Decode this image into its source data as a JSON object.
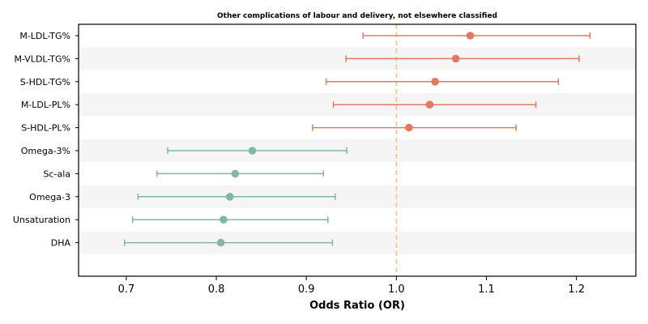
{
  "chart_data": {
    "type": "forest",
    "title": "Other complications of labour and delivery, not elsewhere classified",
    "xlabel": "Odds Ratio (OR)",
    "ylabel": "",
    "xlim": [
      0.647,
      1.266
    ],
    "xticks": [
      0.7,
      0.8,
      0.9,
      1.0,
      1.1,
      1.2
    ],
    "reference_line": 1.0,
    "rows": [
      {
        "label": "M-LDL-TG%",
        "or": 1.082,
        "ci_low": 0.963,
        "ci_high": 1.215,
        "group": "positive"
      },
      {
        "label": "M-VLDL-TG%",
        "or": 1.066,
        "ci_low": 0.944,
        "ci_high": 1.203,
        "group": "positive"
      },
      {
        "label": "S-HDL-TG%",
        "or": 1.043,
        "ci_low": 0.922,
        "ci_high": 1.18,
        "group": "positive"
      },
      {
        "label": "M-LDL-PL%",
        "or": 1.037,
        "ci_low": 0.93,
        "ci_high": 1.155,
        "group": "positive"
      },
      {
        "label": "S-HDL-PL%",
        "or": 1.014,
        "ci_low": 0.907,
        "ci_high": 1.133,
        "group": "positive"
      },
      {
        "label": "Omega-3%",
        "or": 0.84,
        "ci_low": 0.746,
        "ci_high": 0.945,
        "group": "negative"
      },
      {
        "label": "Sc-ala",
        "or": 0.821,
        "ci_low": 0.734,
        "ci_high": 0.919,
        "group": "negative"
      },
      {
        "label": "Omega-3",
        "or": 0.815,
        "ci_low": 0.713,
        "ci_high": 0.932,
        "group": "negative"
      },
      {
        "label": "Unsaturation",
        "or": 0.808,
        "ci_low": 0.707,
        "ci_high": 0.924,
        "group": "negative"
      },
      {
        "label": "DHA",
        "or": 0.805,
        "ci_low": 0.698,
        "ci_high": 0.929,
        "group": "negative"
      }
    ],
    "colors": {
      "positive": "#e07b5f",
      "negative": "#82b89e",
      "reference": "#f3c28c",
      "stripe": "#f5f5f5"
    },
    "grid": false,
    "legend": "none"
  }
}
